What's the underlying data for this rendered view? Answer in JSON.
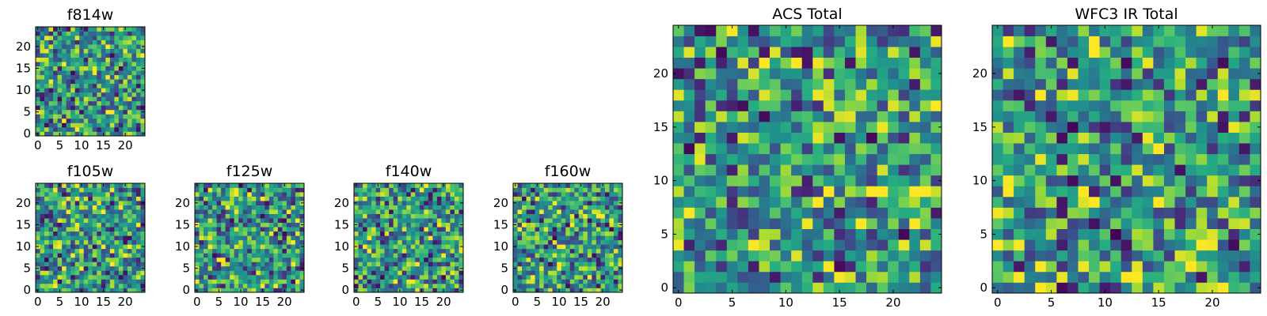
{
  "chart_data": [
    {
      "type": "heatmap",
      "title": "f814w",
      "grid_size": 25,
      "seed": 814,
      "xlim": [
        -0.5,
        24.5
      ],
      "ylim": [
        -0.5,
        24.5
      ],
      "xticks": [
        0,
        5,
        10,
        15,
        20
      ],
      "yticks": [
        0,
        5,
        10,
        15,
        20
      ],
      "xtick_labels": [
        "0",
        "5",
        "10",
        "15",
        "20"
      ],
      "ytick_labels": [
        "0",
        "5",
        "10",
        "15",
        "20"
      ],
      "colormap": "viridis",
      "values_note": "per-pixel values not legible; rendered as pseudo-random field"
    },
    {
      "type": "heatmap",
      "title": "f105w",
      "grid_size": 25,
      "seed": 105,
      "xlim": [
        -0.5,
        24.5
      ],
      "ylim": [
        -0.5,
        24.5
      ],
      "xticks": [
        0,
        5,
        10,
        15,
        20
      ],
      "yticks": [
        0,
        5,
        10,
        15,
        20
      ],
      "xtick_labels": [
        "0",
        "5",
        "10",
        "15",
        "20"
      ],
      "ytick_labels": [
        "0",
        "5",
        "10",
        "15",
        "20"
      ],
      "colormap": "viridis",
      "values_note": "per-pixel values not legible; rendered as pseudo-random field"
    },
    {
      "type": "heatmap",
      "title": "f125w",
      "grid_size": 25,
      "seed": 125,
      "xlim": [
        -0.5,
        24.5
      ],
      "ylim": [
        -0.5,
        24.5
      ],
      "xticks": [
        0,
        5,
        10,
        15,
        20
      ],
      "yticks": [
        0,
        5,
        10,
        15,
        20
      ],
      "xtick_labels": [
        "0",
        "5",
        "10",
        "15",
        "20"
      ],
      "ytick_labels": [
        "0",
        "5",
        "10",
        "15",
        "20"
      ],
      "colormap": "viridis",
      "values_note": "per-pixel values not legible; rendered as pseudo-random field"
    },
    {
      "type": "heatmap",
      "title": "f140w",
      "grid_size": 25,
      "seed": 140,
      "xlim": [
        -0.5,
        24.5
      ],
      "ylim": [
        -0.5,
        24.5
      ],
      "xticks": [
        0,
        5,
        10,
        15,
        20
      ],
      "yticks": [
        0,
        5,
        10,
        15,
        20
      ],
      "xtick_labels": [
        "0",
        "5",
        "10",
        "15",
        "20"
      ],
      "ytick_labels": [
        "0",
        "5",
        "10",
        "15",
        "20"
      ],
      "colormap": "viridis",
      "values_note": "per-pixel values not legible; rendered as pseudo-random field"
    },
    {
      "type": "heatmap",
      "title": "f160w",
      "grid_size": 25,
      "seed": 160,
      "xlim": [
        -0.5,
        24.5
      ],
      "ylim": [
        -0.5,
        24.5
      ],
      "xticks": [
        0,
        5,
        10,
        15,
        20
      ],
      "yticks": [
        0,
        5,
        10,
        15,
        20
      ],
      "xtick_labels": [
        "0",
        "5",
        "10",
        "15",
        "20"
      ],
      "ytick_labels": [
        "0",
        "5",
        "10",
        "15",
        "20"
      ],
      "colormap": "viridis",
      "values_note": "per-pixel values not legible; rendered as pseudo-random field"
    },
    {
      "type": "heatmap",
      "title": "ACS Total",
      "grid_size": 25,
      "seed": 2002,
      "xlim": [
        -0.5,
        24.5
      ],
      "ylim": [
        -0.5,
        24.5
      ],
      "xticks": [
        0,
        5,
        10,
        15,
        20
      ],
      "yticks": [
        0,
        5,
        10,
        15,
        20
      ],
      "xtick_labels": [
        "0",
        "5",
        "10",
        "15",
        "20"
      ],
      "ytick_labels": [
        "0",
        "5",
        "10",
        "15",
        "20"
      ],
      "colormap": "viridis",
      "values_note": "per-pixel values not legible; rendered as pseudo-random field"
    },
    {
      "type": "heatmap",
      "title": "WFC3 IR Total",
      "grid_size": 25,
      "seed": 3009,
      "xlim": [
        -0.5,
        24.5
      ],
      "ylim": [
        -0.5,
        24.5
      ],
      "xticks": [
        0,
        5,
        10,
        15,
        20
      ],
      "yticks": [
        0,
        5,
        10,
        15,
        20
      ],
      "xtick_labels": [
        "0",
        "5",
        "10",
        "15",
        "20"
      ],
      "ytick_labels": [
        "0",
        "5",
        "10",
        "15",
        "20"
      ],
      "colormap": "viridis",
      "values_note": "per-pixel values not legible; rendered as pseudo-random field"
    }
  ]
}
